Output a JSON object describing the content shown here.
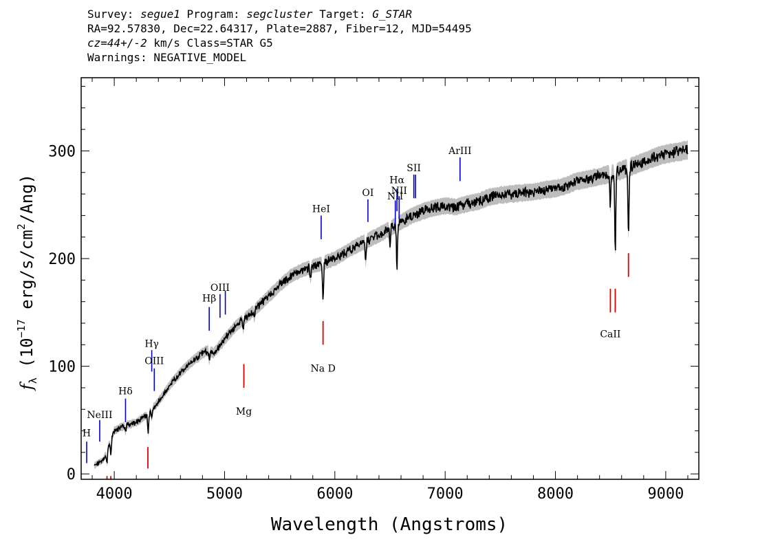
{
  "header": {
    "line1": {
      "survey_label": "Survey:",
      "survey": "segue1",
      "program_label": "Program:",
      "program": "segcluster",
      "target_label": "Target:",
      "target": "G_STAR"
    },
    "line2": "RA=92.57830, Dec=22.64317, Plate=2887, Fiber=12, MJD=54495",
    "line3": {
      "cz": "cz=44+/-2",
      "rest": " km/s Class=STAR G5"
    },
    "line4": "Warnings: NEGATIVE_MODEL"
  },
  "chart_data": {
    "type": "line",
    "title": "",
    "xlabel": "Wavelength (Angstroms)",
    "ylabel_prefix": "f",
    "ylabel_sub": "λ",
    "ylabel_mid": " (10",
    "ylabel_exp": "−17",
    "ylabel_units1": " erg/s/cm",
    "ylabel_sq": "2",
    "ylabel_units2": "/Ang)",
    "xlim": [
      3700,
      9300
    ],
    "ylim": [
      -5,
      368
    ],
    "x_ticks": [
      4000,
      5000,
      6000,
      7000,
      8000,
      9000
    ],
    "x_tick_labels": [
      "4000",
      "5000",
      "6000",
      "7000",
      "8000",
      "9000"
    ],
    "y_ticks": [
      0,
      100,
      200,
      300
    ],
    "y_tick_labels": [
      "0",
      "100",
      "200",
      "300"
    ],
    "colors": {
      "flux": "#000000",
      "model": "#bdbdbd",
      "emission": "#0000cc",
      "absorption": "#dd0000"
    },
    "continuum": {
      "x": [
        3820,
        3900,
        3930,
        3950,
        3980,
        4000,
        4050,
        4100,
        4200,
        4300,
        4400,
        4500,
        4600,
        4700,
        4800,
        4850,
        4900,
        5000,
        5100,
        5200,
        5300,
        5400,
        5500,
        5600,
        5700,
        5800,
        5900,
        6000,
        6100,
        6200,
        6300,
        6400,
        6500,
        6600,
        6700,
        6800,
        6900,
        7000,
        7100,
        7200,
        7300,
        7400,
        7500,
        7600,
        7700,
        7800,
        7900,
        8000,
        8100,
        8200,
        8300,
        8400,
        8500,
        8600,
        8700,
        8800,
        8900,
        9000,
        9100,
        9200
      ],
      "y": [
        8,
        13,
        20,
        27,
        35,
        40,
        43,
        45,
        48,
        55,
        67,
        82,
        94,
        104,
        112,
        115,
        112,
        125,
        137,
        146,
        155,
        165,
        175,
        184,
        189,
        193,
        196,
        200,
        206,
        212,
        217,
        222,
        228,
        234,
        240,
        244,
        247,
        249,
        248,
        251,
        253,
        257,
        259,
        260,
        261,
        262,
        264,
        265,
        268,
        272,
        274,
        276,
        279,
        282,
        286,
        290,
        294,
        297,
        299,
        301
      ]
    },
    "absorption_dips": [
      {
        "x": 3934,
        "depth": 12
      },
      {
        "x": 3969,
        "depth": 14
      },
      {
        "x": 4102,
        "depth": 6
      },
      {
        "x": 4308,
        "depth": 18
      },
      {
        "x": 4340,
        "depth": 8
      },
      {
        "x": 4861,
        "depth": 8
      },
      {
        "x": 5170,
        "depth": 8
      },
      {
        "x": 5270,
        "depth": 6
      },
      {
        "x": 5780,
        "depth": 10
      },
      {
        "x": 5893,
        "depth": 32
      },
      {
        "x": 6280,
        "depth": 18
      },
      {
        "x": 6500,
        "depth": 14
      },
      {
        "x": 6563,
        "depth": 40
      },
      {
        "x": 8498,
        "depth": 30
      },
      {
        "x": 8542,
        "depth": 74
      },
      {
        "x": 8662,
        "depth": 62
      }
    ],
    "emission_lines": [
      {
        "label": "H",
        "x": 3750,
        "y1": 10,
        "y2": 30,
        "label_y": 35,
        "color": "emission"
      },
      {
        "label": "NeIII",
        "x": 3868,
        "y1": 30,
        "y2": 50,
        "label_y": 52,
        "color": "emission"
      },
      {
        "label": "Hδ",
        "x": 4102,
        "y1": 48,
        "y2": 70,
        "label_y": 74,
        "color": "emission"
      },
      {
        "label": "Hγ",
        "x": 4340,
        "y1": 95,
        "y2": 115,
        "label_y": 118,
        "color": "emission"
      },
      {
        "label": "OIII",
        "x": 4363,
        "y1": 77,
        "y2": 98,
        "label_y": 102,
        "color": "emission"
      },
      {
        "label": "Hβ",
        "x": 4861,
        "y1": 133,
        "y2": 155,
        "label_y": 160,
        "color": "emission"
      },
      {
        "label": "OIII",
        "x": 4959,
        "y1": 145,
        "y2": 167,
        "color": "emission"
      },
      {
        "label": "",
        "x": 5007,
        "y1": 148,
        "y2": 170,
        "label_y": 173,
        "color": "emission"
      },
      {
        "label": "HeI",
        "x": 5876,
        "y1": 218,
        "y2": 240,
        "label_y": 243,
        "color": "emission"
      },
      {
        "label": "OI",
        "x": 6300,
        "y1": 234,
        "y2": 255,
        "label_y": 258,
        "color": "emission"
      },
      {
        "label": "NII",
        "x": 6548,
        "y1": 232,
        "y2": 254,
        "label_y": 255,
        "color": "emission"
      },
      {
        "label": "Hα",
        "x": 6563,
        "y1": 244,
        "y2": 265,
        "label_y": 270,
        "color": "emission"
      },
      {
        "label": "NII",
        "x": 6583,
        "y1": 237,
        "y2": 258,
        "label_y": 260,
        "color": "emission"
      },
      {
        "label": "SII",
        "x": 6716,
        "y1": 256,
        "y2": 278,
        "label_y": 281,
        "color": "emission"
      },
      {
        "label": "",
        "x": 6731,
        "y1": 256,
        "y2": 278,
        "color": "emission"
      },
      {
        "label": "ArIII",
        "x": 7135,
        "y1": 272,
        "y2": 294,
        "label_y": 297,
        "color": "emission"
      },
      {
        "label": "",
        "x": 3934,
        "y1": -5,
        "y2": -2,
        "color": "absorption"
      },
      {
        "label": "",
        "x": 3969,
        "y1": -5,
        "y2": -2,
        "color": "absorption"
      },
      {
        "label": "",
        "x": 4305,
        "y1": 5,
        "y2": 25,
        "color": "absorption"
      },
      {
        "label": "Mg",
        "x": 5175,
        "y1": 80,
        "y2": 102,
        "label_y": 55,
        "color": "absorption"
      },
      {
        "label": "Na D",
        "x": 5893,
        "y1": 120,
        "y2": 142,
        "label_y": 95,
        "color": "absorption"
      },
      {
        "label": "CaII",
        "x": 8498,
        "y1": 150,
        "y2": 172,
        "label_y": 127,
        "color": "absorption"
      },
      {
        "label": "",
        "x": 8542,
        "y1": 150,
        "y2": 172,
        "color": "absorption"
      },
      {
        "label": "",
        "x": 8662,
        "y1": 183,
        "y2": 205,
        "color": "absorption"
      }
    ]
  }
}
